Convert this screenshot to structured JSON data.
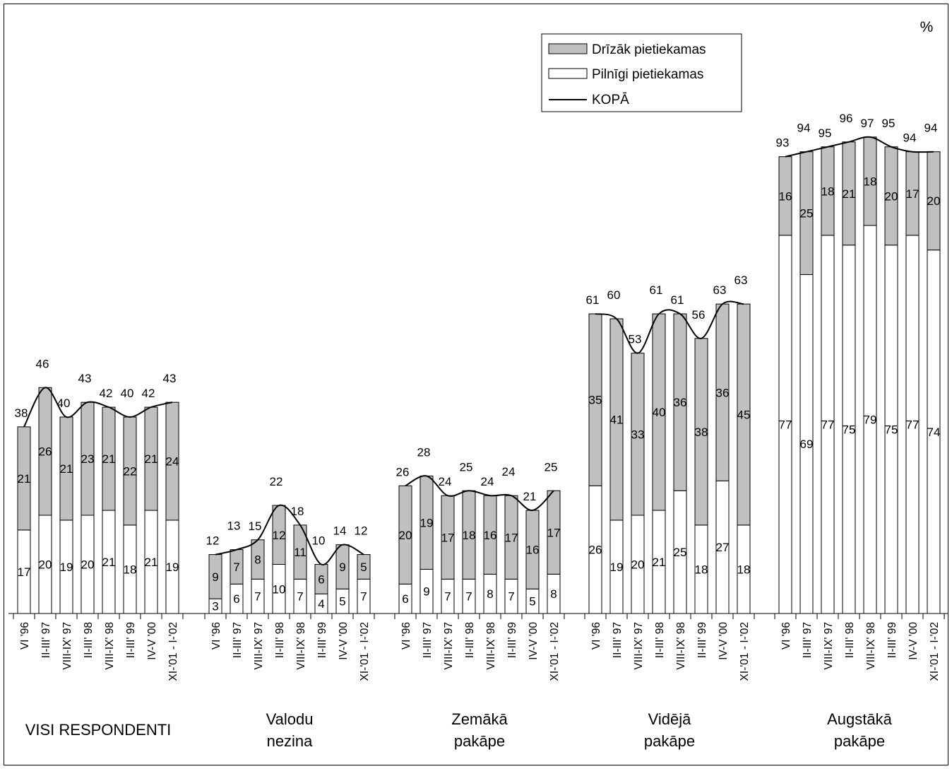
{
  "chart_data": {
    "type": "bar",
    "stacked": true,
    "unit": "%",
    "legend": [
      {
        "name": "Drīzāk pietiekamas",
        "kind": "bar",
        "color": "#c0c0c0"
      },
      {
        "name": "Pilnīgi pietiekamas",
        "kind": "bar",
        "color": "#ffffff"
      },
      {
        "name": "KOPĀ",
        "kind": "line",
        "color": "#000000"
      }
    ],
    "legend_position": "top-right",
    "ylim": [
      0,
      100
    ],
    "grid": false,
    "groups": [
      {
        "label": [
          "VISI RESPONDENTI"
        ],
        "categories": [
          "VI '96",
          "II-III' 97",
          "VIII-IX' 97",
          "II-III' 98",
          "VIII-IX' 98",
          "II-III' 99",
          "IV-V '00",
          "XI-'01 - I-'02"
        ],
        "pilnigi": [
          17,
          20,
          19,
          20,
          21,
          18,
          21,
          19
        ],
        "drizak": [
          21,
          26,
          21,
          23,
          21,
          22,
          21,
          24
        ],
        "kopa": [
          38,
          46,
          40,
          43,
          42,
          40,
          42,
          43
        ]
      },
      {
        "label": [
          "Valodu",
          "nezina"
        ],
        "categories": [
          "VI '96",
          "II-III' 97",
          "VIII-IX' 97",
          "II-III' 98",
          "VIII-IX' 98",
          "II-III' 99",
          "IV-V '00",
          "XI-'01 - I-'02"
        ],
        "pilnigi": [
          3,
          6,
          7,
          10,
          7,
          4,
          5,
          7
        ],
        "drizak": [
          9,
          7,
          8,
          12,
          11,
          6,
          9,
          5
        ],
        "kopa": [
          12,
          13,
          15,
          22,
          18,
          10,
          14,
          12
        ]
      },
      {
        "label": [
          "Zemākā",
          "pakāpe"
        ],
        "categories": [
          "VI '96",
          "II-III' 97",
          "VIII-IX' 97",
          "II-III' 98",
          "VIII-IX' 98",
          "II-III' 99",
          "IV-V '00",
          "XI-'01 - I-'02"
        ],
        "pilnigi": [
          6,
          9,
          7,
          7,
          8,
          7,
          5,
          8
        ],
        "drizak": [
          20,
          19,
          17,
          18,
          16,
          17,
          16,
          17
        ],
        "kopa": [
          26,
          28,
          24,
          25,
          24,
          24,
          21,
          25
        ]
      },
      {
        "label": [
          "Vidējā",
          "pakāpe"
        ],
        "categories": [
          "VI '96",
          "II-III' 97",
          "VIII-IX' 97",
          "II-III' 98",
          "VIII-IX' 98",
          "II-III' 99",
          "IV-V '00",
          "XI-'01 - I-'02"
        ],
        "pilnigi": [
          26,
          19,
          20,
          21,
          25,
          18,
          27,
          18
        ],
        "drizak": [
          35,
          41,
          33,
          40,
          36,
          38,
          36,
          45
        ],
        "kopa": [
          61,
          60,
          53,
          61,
          61,
          56,
          63,
          63
        ]
      },
      {
        "label": [
          "Augstākā",
          "pakāpe"
        ],
        "categories": [
          "VI '96",
          "II-III' 97",
          "VIII-IX' 97",
          "II-III' 98",
          "VIII-IX' 98",
          "II-III' 99",
          "IV-V '00",
          "XI-'01 - I-'02"
        ],
        "pilnigi": [
          77,
          69,
          77,
          75,
          79,
          75,
          77,
          74
        ],
        "drizak": [
          16,
          25,
          18,
          21,
          18,
          20,
          17,
          20
        ],
        "kopa": [
          93,
          94,
          95,
          96,
          97,
          95,
          94,
          94
        ]
      }
    ]
  }
}
